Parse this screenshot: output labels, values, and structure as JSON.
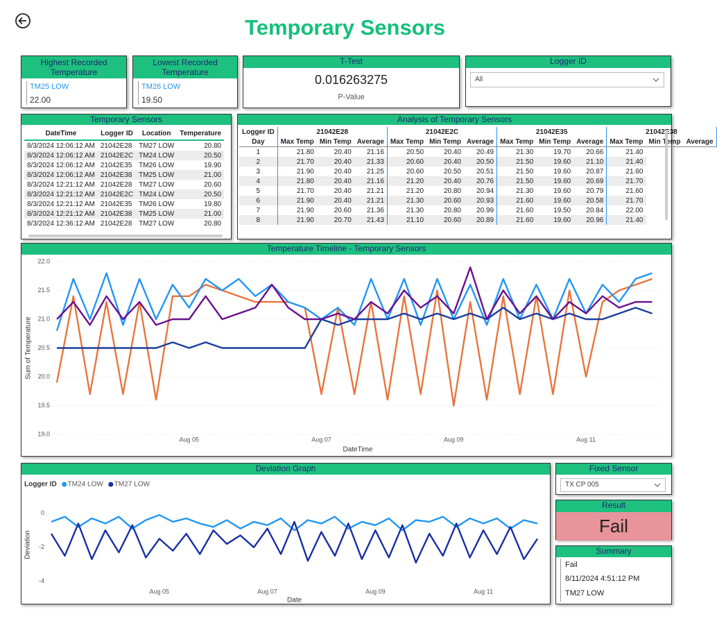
{
  "header": {
    "title": "Temporary Sensors"
  },
  "cards": {
    "highest": {
      "title": "Highest Recorded Temperature",
      "logger": "TM25 LOW",
      "value": "22.00"
    },
    "lowest": {
      "title": "Lowest Recorded Temperature",
      "logger": "TM26 LOW",
      "value": "19.50"
    },
    "ttest": {
      "title": "T-Test",
      "value": "0.016263275",
      "label": "P-Value"
    },
    "logger_id": {
      "title": "Logger ID",
      "selected": "All"
    }
  },
  "sensor_table": {
    "title": "Temporary Sensors",
    "columns": [
      "DateTime",
      "Logger ID",
      "Location",
      "Temperature"
    ],
    "rows": [
      [
        "8/3/2024 12:06:12 AM",
        "21042E28",
        "TM27 LOW",
        "20.80"
      ],
      [
        "8/3/2024 12:06:12 AM",
        "21042E2C",
        "TM24 LOW",
        "20.50"
      ],
      [
        "8/3/2024 12:06:12 AM",
        "21042E35",
        "TM26 LOW",
        "19.90"
      ],
      [
        "8/3/2024 12:06:12 AM",
        "21042E38",
        "TM25 LOW",
        "21.00"
      ],
      [
        "8/3/2024 12:21:12 AM",
        "21042E28",
        "TM27 LOW",
        "20.60"
      ],
      [
        "8/3/2024 12:21:12 AM",
        "21042E2C",
        "TM24 LOW",
        "20.50"
      ],
      [
        "8/3/2024 12:21:12 AM",
        "21042E35",
        "TM26 LOW",
        "19.80"
      ],
      [
        "8/3/2024 12:21:12 AM",
        "21042E38",
        "TM25 LOW",
        "21.00"
      ],
      [
        "8/3/2024 12:36:12 AM",
        "21042E28",
        "TM27 LOW",
        "20.80"
      ]
    ]
  },
  "analysis_table": {
    "title": "Analysis of Temporary Sensors",
    "corner": [
      "Logger ID",
      "Day"
    ],
    "loggers": [
      "21042E28",
      "21042E2C",
      "21042E35",
      "21042E38"
    ],
    "measures": [
      "Max Temp",
      "Min Temp",
      "Average"
    ],
    "rows": [
      [
        "1",
        "21.80",
        "20.40",
        "21.16",
        "20.50",
        "20.40",
        "20.49",
        "21.30",
        "19.70",
        "20.66",
        "21.40"
      ],
      [
        "2",
        "21.70",
        "20.40",
        "21.33",
        "20.60",
        "20.40",
        "20.50",
        "21.50",
        "19.60",
        "21.10",
        "21.40"
      ],
      [
        "3",
        "21.90",
        "20.40",
        "21.25",
        "20.60",
        "20.50",
        "20.51",
        "21.50",
        "19.60",
        "20.87",
        "21.60"
      ],
      [
        "4",
        "21.80",
        "20.40",
        "21.16",
        "21.20",
        "20.40",
        "20.76",
        "21.50",
        "19.60",
        "20.69",
        "21.70"
      ],
      [
        "5",
        "21.70",
        "20.40",
        "21.21",
        "21.20",
        "20.80",
        "20.94",
        "21.30",
        "19.60",
        "20.79",
        "21.60"
      ],
      [
        "6",
        "21.90",
        "20.40",
        "21.21",
        "21.30",
        "20.60",
        "20.93",
        "21.60",
        "19.60",
        "20.58",
        "21.70"
      ],
      [
        "7",
        "21.90",
        "20.60",
        "21.36",
        "21.30",
        "20.80",
        "20.99",
        "21.60",
        "19.50",
        "20.84",
        "22.00"
      ],
      [
        "8",
        "21.90",
        "20.70",
        "21.43",
        "21.10",
        "20.60",
        "20.89",
        "21.60",
        "19.60",
        "20.96",
        "21.40"
      ]
    ]
  },
  "chart_data": [
    {
      "type": "line",
      "title": "Temperature Timeline - Temporary Sensors",
      "x_label": "DateTime",
      "y_label": "Sum of Temperature",
      "x": [
        3,
        3.25,
        3.5,
        3.75,
        4,
        4.25,
        4.5,
        4.75,
        5,
        5.25,
        5.5,
        5.75,
        6,
        6.25,
        6.5,
        6.75,
        7,
        7.25,
        7.5,
        7.75,
        8,
        8.25,
        8.5,
        8.75,
        9,
        9.25,
        9.5,
        9.75,
        10,
        10.25,
        10.5,
        10.75,
        11,
        11.25,
        11.5,
        11.75,
        12
      ],
      "xlim": [
        3,
        12.1
      ],
      "xticks": [
        {
          "value": 5,
          "label": "Aug 05"
        },
        {
          "value": 7,
          "label": "Aug 07"
        },
        {
          "value": 9,
          "label": "Aug 09"
        },
        {
          "value": 11,
          "label": "Aug 11"
        }
      ],
      "ylim": [
        19,
        22
      ],
      "yticks": [
        {
          "value": 19,
          "label": "19.0"
        },
        {
          "value": 19.5,
          "label": "19.5"
        },
        {
          "value": 20,
          "label": "20.0"
        },
        {
          "value": 20.5,
          "label": "20.5"
        },
        {
          "value": 21,
          "label": "21.0"
        },
        {
          "value": 21.5,
          "label": "21.5"
        },
        {
          "value": 22,
          "label": "22.0"
        }
      ],
      "grid": true,
      "series": [
        {
          "color": "#e8743b",
          "values": [
            19.9,
            21.4,
            19.7,
            21.3,
            19.7,
            21.3,
            19.6,
            21.4,
            21.4,
            21.6,
            21.5,
            21.4,
            21.3,
            21.3,
            21.3,
            21.2,
            19.7,
            21.2,
            19.7,
            21.3,
            19.6,
            21.4,
            19.7,
            21.5,
            19.5,
            21.3,
            19.6,
            21.4,
            19.7,
            21.4,
            19.7,
            21.5,
            20.0,
            21.3,
            21.5,
            21.6,
            21.7
          ]
        },
        {
          "color": "#2196f3",
          "values": [
            20.8,
            21.7,
            21.0,
            21.8,
            20.9,
            21.7,
            21.0,
            21.6,
            21.2,
            21.7,
            21.5,
            21.7,
            21.4,
            21.6,
            21.3,
            21.2,
            21.0,
            21.2,
            20.9,
            21.7,
            21.0,
            21.7,
            20.9,
            21.7,
            21.0,
            21.6,
            20.9,
            21.7,
            21.0,
            21.6,
            21.0,
            21.7,
            21.1,
            21.6,
            21.3,
            21.7,
            21.8
          ]
        },
        {
          "color": "#1a3d9e",
          "values": [
            20.5,
            20.5,
            20.5,
            20.5,
            20.5,
            20.5,
            20.5,
            20.6,
            20.5,
            20.6,
            20.5,
            20.5,
            20.5,
            20.5,
            20.5,
            20.5,
            21.0,
            20.9,
            21.0,
            21.0,
            21.0,
            21.1,
            21.0,
            21.1,
            21.0,
            21.1,
            21.0,
            21.2,
            21.0,
            21.1,
            21.0,
            21.1,
            21.0,
            21.0,
            21.1,
            21.2,
            21.1
          ]
        },
        {
          "color": "#6a0f8e",
          "values": [
            21.0,
            21.3,
            20.9,
            21.4,
            21.0,
            21.3,
            20.9,
            21.0,
            21.0,
            21.4,
            21.0,
            21.1,
            21.2,
            21.6,
            21.2,
            21.0,
            21.0,
            21.1,
            21.0,
            21.3,
            21.1,
            21.5,
            21.2,
            21.4,
            21.1,
            21.9,
            21.0,
            21.5,
            21.1,
            21.4,
            21.0,
            21.3,
            21.1,
            21.4,
            21.2,
            21.3,
            21.3
          ]
        }
      ]
    },
    {
      "type": "line",
      "title": "Deviation Graph",
      "x_label": "Date",
      "y_label": "Deviation",
      "legend_title": "Logger ID",
      "x": [
        3,
        3.25,
        3.5,
        3.75,
        4,
        4.25,
        4.5,
        4.75,
        5,
        5.25,
        5.5,
        5.75,
        6,
        6.25,
        6.5,
        6.75,
        7,
        7.25,
        7.5,
        7.75,
        8,
        8.25,
        8.5,
        8.75,
        9,
        9.25,
        9.5,
        9.75,
        10,
        10.25,
        10.5,
        10.75,
        11,
        11.25,
        11.5,
        11.75,
        12
      ],
      "xlim": [
        3,
        12
      ],
      "xticks": [
        {
          "value": 5,
          "label": "Aug 05"
        },
        {
          "value": 7,
          "label": "Aug 07"
        },
        {
          "value": 9,
          "label": "Aug 09"
        },
        {
          "value": 11,
          "label": "Aug 11"
        }
      ],
      "ylim": [
        -4.3,
        0.6
      ],
      "yticks": [
        0,
        -2,
        -4
      ],
      "series": [
        {
          "name": "TM24 LOW",
          "color": "#2196f3",
          "values": [
            -0.5,
            -0.2,
            -0.8,
            -0.3,
            -0.6,
            -0.2,
            -0.9,
            -0.4,
            -0.1,
            -0.5,
            -0.3,
            -0.6,
            -0.8,
            -0.4,
            -0.9,
            -0.5,
            -0.7,
            -0.3,
            -1.0,
            -0.4,
            -0.6,
            -0.2,
            -0.9,
            -0.5,
            -0.7,
            -0.3,
            -1.0,
            -0.4,
            -0.5,
            -0.2,
            -0.8,
            -0.3,
            -0.6,
            -0.3,
            -0.9,
            -0.4,
            -0.6
          ]
        },
        {
          "name": "TM27 LOW",
          "color": "#1a2fa0",
          "values": [
            -1.2,
            -2.5,
            -0.6,
            -2.7,
            -1.0,
            -2.3,
            -0.7,
            -2.6,
            -1.5,
            -2.2,
            -1.2,
            -2.4,
            -1.0,
            -1.8,
            -1.3,
            -2.0,
            -0.9,
            -2.4,
            -0.5,
            -2.8,
            -1.1,
            -2.5,
            -0.6,
            -2.7,
            -1.0,
            -2.6,
            -0.7,
            -2.9,
            -1.2,
            -2.5,
            -0.6,
            -2.6,
            -1.0,
            -2.4,
            -0.8,
            -2.7,
            -1.5
          ]
        }
      ]
    }
  ],
  "fixed_sensor": {
    "title": "Fixed Sensor",
    "selected": "TX CP 005"
  },
  "result": {
    "title": "Result",
    "value": "Fail"
  },
  "summary": {
    "title": "Summary",
    "lines": [
      "Fail",
      "8/11/2024 4:51:12 PM",
      "TM27 LOW"
    ]
  }
}
